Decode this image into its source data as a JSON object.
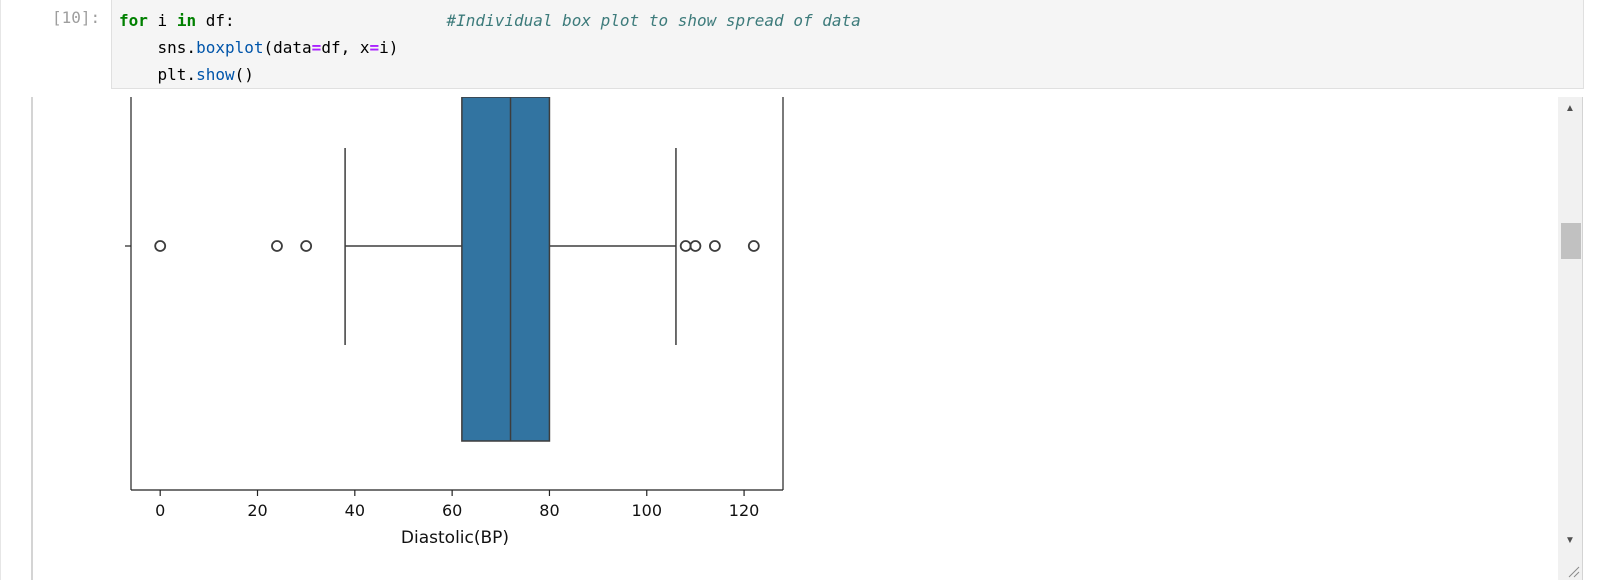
{
  "cell": {
    "prompt": "[10]:",
    "code_lines": [
      {
        "parts": [
          {
            "cls": "kw",
            "t": "for"
          },
          {
            "cls": "",
            "t": " i "
          },
          {
            "cls": "kw",
            "t": "in"
          },
          {
            "cls": "",
            "t": " df:                      "
          },
          {
            "cls": "cm",
            "t": "#Individual box plot to show spread of data"
          }
        ]
      },
      {
        "parts": [
          {
            "cls": "",
            "t": "    sns."
          },
          {
            "cls": "fn",
            "t": "boxplot"
          },
          {
            "cls": "",
            "t": "(data"
          },
          {
            "cls": "op",
            "t": "="
          },
          {
            "cls": "",
            "t": "df, x"
          },
          {
            "cls": "op",
            "t": "="
          },
          {
            "cls": "",
            "t": "i)"
          }
        ]
      },
      {
        "parts": [
          {
            "cls": "",
            "t": "    plt."
          },
          {
            "cls": "fn",
            "t": "show"
          },
          {
            "cls": "",
            "t": "()"
          }
        ]
      }
    ]
  },
  "colors": {
    "box_fill": "#3274a1",
    "line": "#3d3d3d"
  },
  "chart_data": {
    "type": "boxplot",
    "xlabel": "Diastolic(BP)",
    "xlim": [
      -6,
      128
    ],
    "xticks": [
      0,
      20,
      40,
      60,
      80,
      100,
      120
    ],
    "box": {
      "whisker_low": 38,
      "q1": 62,
      "median": 72,
      "q3": 80,
      "whisker_high": 106
    },
    "outliers": [
      0,
      24,
      30,
      108,
      110,
      114,
      122
    ]
  }
}
